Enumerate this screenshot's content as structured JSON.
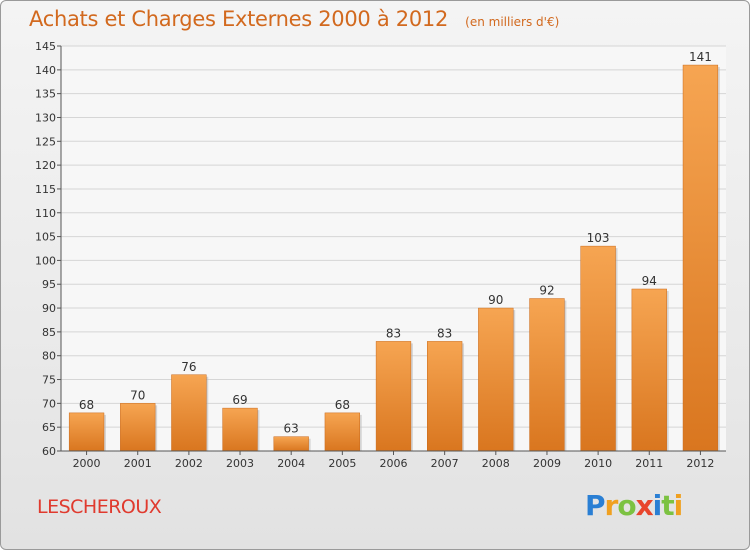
{
  "header": {
    "title": "Achats et Charges Externes 2000 à 2012",
    "unit": "(en milliers d'€)"
  },
  "place_name": "LESCHEROUX",
  "logo": {
    "letters": [
      "P",
      "r",
      "o",
      "x",
      "i",
      "t",
      "i"
    ],
    "colors": [
      "#2a7fd4",
      "#f0a020",
      "#7cc242",
      "#e8452c",
      "#2a7fd4",
      "#7cc242",
      "#f0a020"
    ]
  },
  "colors": {
    "bar_light": "#f6a552",
    "bar_dark": "#d9761f",
    "title": "#d2691e",
    "place": "#e03a2e"
  },
  "chart_data": {
    "type": "bar",
    "title": "Achats et Charges Externes 2000 à 2012",
    "subtitle": "(en milliers d'€)",
    "xlabel": "",
    "ylabel": "",
    "categories": [
      "2000",
      "2001",
      "2002",
      "2003",
      "2004",
      "2005",
      "2006",
      "2007",
      "2008",
      "2009",
      "2010",
      "2011",
      "2012"
    ],
    "values": [
      68,
      70,
      76,
      69,
      63,
      68,
      83,
      83,
      90,
      92,
      103,
      94,
      141
    ],
    "ylim": [
      60,
      145
    ],
    "yticks": [
      60,
      65,
      70,
      75,
      80,
      85,
      90,
      95,
      100,
      105,
      110,
      115,
      120,
      125,
      130,
      135,
      140,
      145
    ],
    "grid": true,
    "legend": "none"
  }
}
